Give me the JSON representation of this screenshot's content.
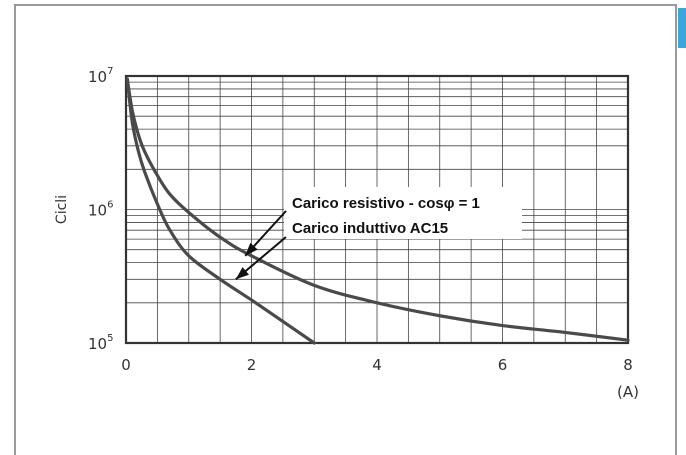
{
  "chart_data": {
    "type": "line",
    "title": "",
    "xlabel": "",
    "xunit": "(A)",
    "ylabel": "Cicli",
    "y_scale": "log",
    "xlim": [
      0,
      8
    ],
    "ylim": [
      100000,
      10000000
    ],
    "x_ticks": [
      "0",
      "2",
      "4",
      "6",
      "8"
    ],
    "y_ticks": [
      {
        "base": "10",
        "exp": "5"
      },
      {
        "base": "10",
        "exp": "6"
      },
      {
        "base": "10",
        "exp": "7"
      }
    ],
    "grid": true,
    "series": [
      {
        "x": [
          0.02,
          0.1,
          0.2,
          0.3,
          0.5,
          0.7,
          1.0,
          1.5,
          2.0,
          3.0,
          4.0,
          5.0,
          6.0,
          7.0,
          8.0
        ],
        "y": [
          9500000,
          5500000,
          3600000,
          2700000,
          1800000,
          1300000,
          950000,
          620000,
          450000,
          270000,
          200000,
          160000,
          135000,
          120000,
          105000
        ]
      },
      {
        "x": [
          0.02,
          0.1,
          0.2,
          0.3,
          0.5,
          0.7,
          1.0,
          1.5,
          2.0,
          2.5,
          3.0
        ],
        "y": [
          9500000,
          4500000,
          2700000,
          1900000,
          1100000,
          700000,
          450000,
          300000,
          210000,
          145000,
          100000
        ]
      }
    ],
    "annotations": [
      {
        "text": "Carico resistivo - cosφ = 1",
        "x": 1.9,
        "y": 450000
      },
      {
        "text": "Carico induttivo AC15",
        "x": 1.75,
        "y": 300000
      }
    ]
  }
}
